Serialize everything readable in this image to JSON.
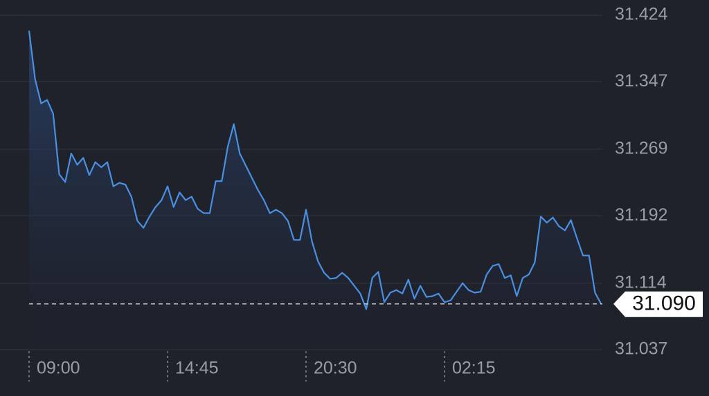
{
  "chart_data": {
    "type": "line",
    "categories": [
      "09:00",
      null,
      null,
      null,
      null,
      null,
      null,
      null,
      null,
      null,
      null,
      null,
      null,
      null,
      null,
      null,
      null,
      null,
      null,
      null,
      null,
      null,
      null,
      "14:45",
      null,
      null,
      null,
      null,
      null,
      null,
      null,
      null,
      null,
      null,
      null,
      null,
      null,
      null,
      null,
      null,
      null,
      null,
      null,
      null,
      null,
      null,
      "20:30",
      null,
      null,
      null,
      null,
      null,
      null,
      null,
      null,
      null,
      null,
      null,
      null,
      null,
      null,
      null,
      null,
      null,
      null,
      null,
      null,
      null,
      null,
      "02:15",
      null,
      null,
      null,
      null,
      null,
      null,
      null,
      null,
      null,
      null,
      null,
      null,
      null,
      null,
      null,
      null,
      null,
      null,
      null,
      null,
      null,
      null,
      null,
      null,
      null,
      null
    ],
    "series": [
      {
        "color": "#4a90e2",
        "values": [
          31.406,
          31.35,
          31.322,
          31.326,
          31.31,
          31.24,
          31.231,
          31.264,
          31.251,
          31.259,
          31.239,
          31.254,
          31.248,
          31.254,
          31.226,
          31.23,
          31.228,
          31.214,
          31.186,
          31.178,
          31.191,
          31.202,
          31.21,
          31.226,
          31.202,
          31.219,
          31.21,
          31.214,
          31.2,
          31.195,
          31.195,
          31.232,
          31.232,
          31.272,
          31.298,
          31.264,
          31.25,
          31.236,
          31.222,
          31.21,
          31.195,
          31.199,
          31.195,
          31.186,
          31.164,
          31.164,
          31.199,
          31.162,
          31.139,
          31.126,
          31.119,
          31.12,
          31.126,
          31.12,
          31.111,
          31.102,
          31.084,
          31.12,
          31.127,
          31.092,
          31.103,
          31.106,
          31.102,
          31.118,
          31.096,
          31.111,
          31.098,
          31.099,
          31.102,
          31.092,
          31.094,
          31.104,
          31.114,
          31.106,
          31.103,
          31.104,
          31.124,
          31.134,
          31.136,
          31.12,
          31.123,
          31.099,
          31.12,
          31.124,
          31.138,
          31.191,
          31.184,
          31.19,
          31.18,
          31.175,
          31.187,
          31.166,
          31.146,
          31.146,
          31.103,
          31.09
        ]
      }
    ],
    "last_price": {
      "value": 31.09,
      "label": "31.090"
    },
    "ylim": [
      31.037,
      31.424
    ],
    "yticks": [
      31.424,
      31.347,
      31.269,
      31.192,
      31.114,
      31.037
    ],
    "grid": true
  }
}
